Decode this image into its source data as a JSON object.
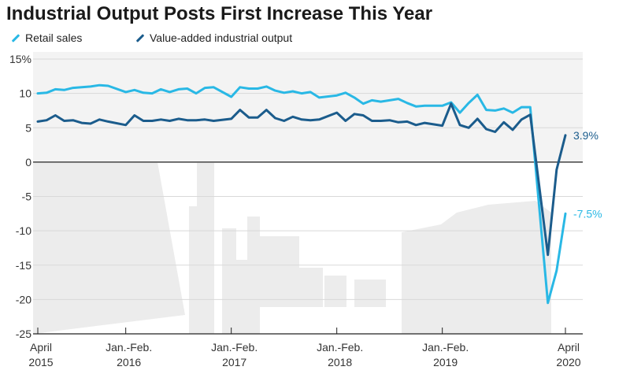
{
  "chart_data": {
    "type": "line",
    "title": "Industrial Output Posts First Increase This Year",
    "x": [
      "2015-04",
      "2015-05",
      "2015-06",
      "2015-07",
      "2015-08",
      "2015-09",
      "2015-10",
      "2015-11",
      "2015-12",
      "2016-02",
      "2016-03",
      "2016-04",
      "2016-05",
      "2016-06",
      "2016-07",
      "2016-08",
      "2016-09",
      "2016-10",
      "2016-11",
      "2016-12",
      "2017-02",
      "2017-03",
      "2017-04",
      "2017-05",
      "2017-06",
      "2017-07",
      "2017-08",
      "2017-09",
      "2017-10",
      "2017-11",
      "2017-12",
      "2018-02",
      "2018-03",
      "2018-04",
      "2018-05",
      "2018-06",
      "2018-07",
      "2018-08",
      "2018-09",
      "2018-10",
      "2018-11",
      "2018-12",
      "2019-02",
      "2019-03",
      "2019-04",
      "2019-05",
      "2019-06",
      "2019-07",
      "2019-08",
      "2019-09",
      "2019-10",
      "2019-11",
      "2019-12",
      "2020-02",
      "2020-03",
      "2020-04"
    ],
    "series": [
      {
        "name": "Retail sales",
        "color": "#29b8e5",
        "values": [
          10.0,
          10.1,
          10.6,
          10.5,
          10.8,
          10.9,
          11.0,
          11.2,
          11.1,
          10.2,
          10.5,
          10.1,
          10.0,
          10.6,
          10.2,
          10.6,
          10.7,
          10.0,
          10.8,
          10.9,
          9.5,
          10.9,
          10.7,
          10.7,
          11.0,
          10.4,
          10.1,
          10.3,
          10.0,
          10.2,
          9.4,
          9.7,
          10.1,
          9.4,
          8.5,
          9.0,
          8.8,
          9.0,
          9.2,
          8.6,
          8.1,
          8.2,
          8.2,
          8.7,
          7.2,
          8.6,
          9.8,
          7.6,
          7.5,
          7.8,
          7.2,
          8.0,
          8.0,
          -20.5,
          -15.8,
          -7.5
        ]
      },
      {
        "name": "Value-added industrial output",
        "color": "#1b5c8c",
        "values": [
          5.9,
          6.1,
          6.8,
          6.0,
          6.1,
          5.7,
          5.6,
          6.2,
          5.9,
          5.4,
          6.8,
          6.0,
          6.0,
          6.2,
          6.0,
          6.3,
          6.1,
          6.1,
          6.2,
          6.0,
          6.3,
          7.6,
          6.5,
          6.5,
          7.6,
          6.4,
          6.0,
          6.6,
          6.2,
          6.1,
          6.2,
          7.2,
          6.0,
          7.0,
          6.8,
          6.0,
          6.0,
          6.1,
          5.8,
          5.9,
          5.4,
          5.7,
          5.3,
          8.5,
          5.4,
          5.0,
          6.3,
          4.8,
          4.4,
          5.8,
          4.7,
          6.2,
          6.9,
          -13.5,
          -1.1,
          3.9
        ]
      }
    ],
    "ylim": [
      -25,
      15
    ],
    "yticks": [
      {
        "value": 15,
        "label": "15%"
      },
      {
        "value": 10,
        "label": "10"
      },
      {
        "value": 5,
        "label": "5"
      },
      {
        "value": 0,
        "label": "0"
      },
      {
        "value": -5,
        "label": "-5"
      },
      {
        "value": -10,
        "label": "-10"
      },
      {
        "value": -15,
        "label": "-15"
      },
      {
        "value": -20,
        "label": "-20"
      },
      {
        "value": -25,
        "label": "-25"
      }
    ],
    "xticks": [
      {
        "x": "2015-04",
        "line1": "April",
        "line2": "2015"
      },
      {
        "x": "2016-02",
        "line1": "Jan.-Feb.",
        "line2": "2016"
      },
      {
        "x": "2017-02",
        "line1": "Jan.-Feb.",
        "line2": "2017"
      },
      {
        "x": "2018-02",
        "line1": "Jan.-Feb.",
        "line2": "2018"
      },
      {
        "x": "2019-02",
        "line1": "Jan.-Feb.",
        "line2": "2019"
      },
      {
        "x": "2020-04",
        "line1": "April",
        "line2": "2020"
      }
    ],
    "end_labels": [
      {
        "series": "Value-added industrial output",
        "text": "3.9%"
      },
      {
        "series": "Retail sales",
        "text": "-7.5%"
      }
    ],
    "legend_position": "top-left",
    "grid": "horizontal"
  }
}
